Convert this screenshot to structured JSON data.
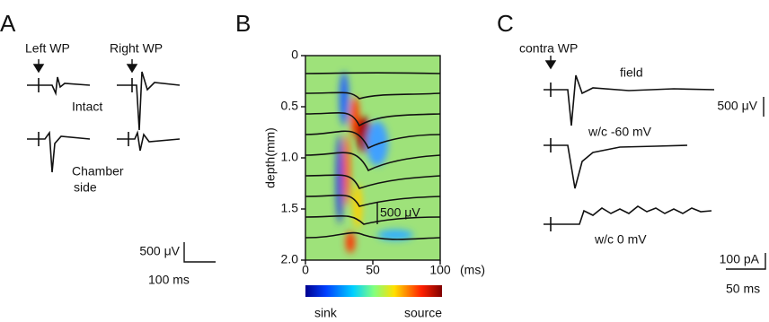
{
  "panel_a": {
    "label": "A",
    "left_stim": "Left WP",
    "right_stim": "Right WP",
    "condition_1": "Intact",
    "condition_2_line_1": "Chamber",
    "condition_2_line_2": "side",
    "scale_v": "500 μV",
    "scale_t": "100 ms"
  },
  "panel_b": {
    "label": "B",
    "y_label": "depth(mm)",
    "yticks": [
      "0",
      "0.5",
      "1.0",
      "1.5",
      "2.0"
    ],
    "xticks": [
      "0",
      "50",
      "100"
    ],
    "x_unit": "(ms)",
    "scale_v": "500 μV",
    "colorbar_low": "sink",
    "colorbar_high": "source"
  },
  "panel_c": {
    "label": "C",
    "stim": "contra WP",
    "trace_1": "field",
    "trace_2": "w/c -60 mV",
    "trace_3": "w/c 0 mV",
    "scale_v": "500 μV",
    "scale_i": "100 pA",
    "scale_t": "50 ms"
  }
}
